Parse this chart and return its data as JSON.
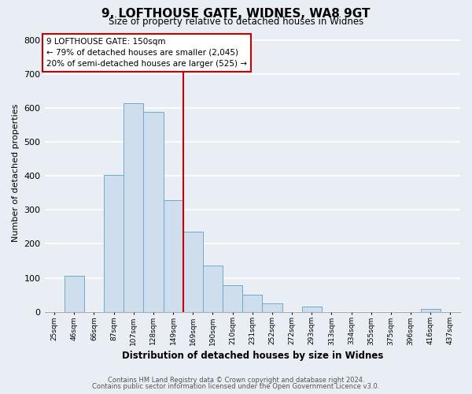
{
  "title": "9, LOFTHOUSE GATE, WIDNES, WA8 9GT",
  "subtitle": "Size of property relative to detached houses in Widnes",
  "xlabel": "Distribution of detached houses by size in Widnes",
  "ylabel": "Number of detached properties",
  "bin_labels": [
    "25sqm",
    "46sqm",
    "66sqm",
    "87sqm",
    "107sqm",
    "128sqm",
    "149sqm",
    "169sqm",
    "190sqm",
    "210sqm",
    "231sqm",
    "252sqm",
    "272sqm",
    "293sqm",
    "313sqm",
    "334sqm",
    "355sqm",
    "375sqm",
    "396sqm",
    "416sqm",
    "437sqm"
  ],
  "bar_heights": [
    0,
    105,
    0,
    403,
    615,
    590,
    330,
    237,
    136,
    77,
    50,
    25,
    0,
    15,
    0,
    0,
    0,
    0,
    0,
    8,
    0
  ],
  "bar_color": "#cfdeed",
  "bar_edge_color": "#6aaad4",
  "vline_color": "#cc0000",
  "annotation_title": "9 LOFTHOUSE GATE: 150sqm",
  "annotation_line1": "← 79% of detached houses are smaller (2,045)",
  "annotation_line2": "20% of semi-detached houses are larger (525) →",
  "annotation_box_facecolor": "#ffffff",
  "annotation_box_edgecolor": "#cc0000",
  "ylim": [
    0,
    820
  ],
  "yticks": [
    0,
    100,
    200,
    300,
    400,
    500,
    600,
    700,
    800
  ],
  "footer1": "Contains HM Land Registry data © Crown copyright and database right 2024.",
  "footer2": "Contains public sector information licensed under the Open Government Licence v3.0.",
  "background_color": "#e8eef4",
  "grid_color": "#ffffff",
  "vline_bin_index": 6
}
